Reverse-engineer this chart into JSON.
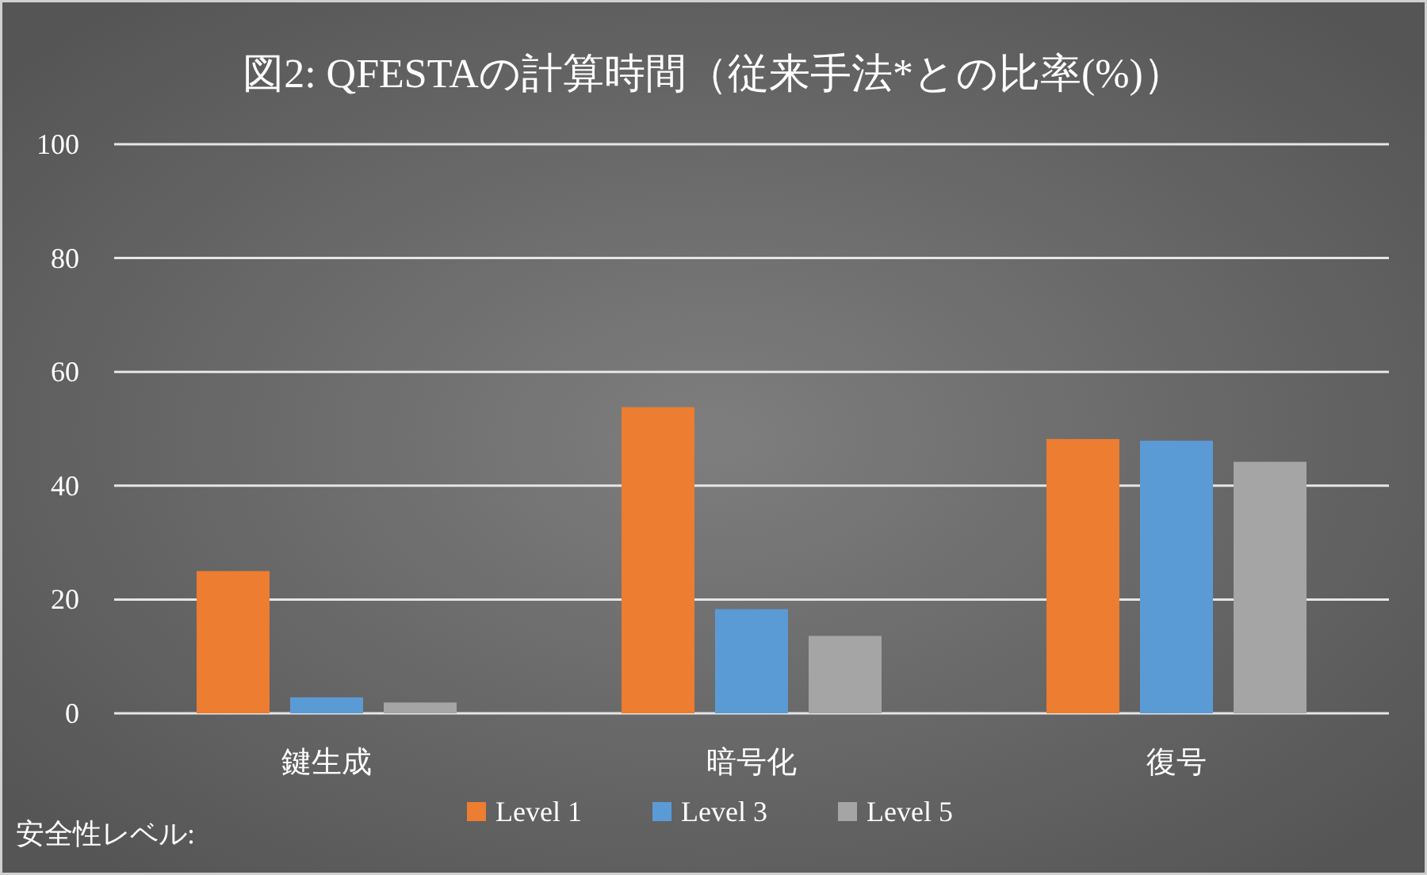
{
  "chart_data": {
    "type": "bar",
    "title": "図2: QFESTAの計算時間（従来手法*との比率(%)）",
    "categories": [
      "鍵生成",
      "暗号化",
      "復号"
    ],
    "series": [
      {
        "name": "Level 1",
        "color": "#ed7d31",
        "values": [
          25,
          53.8,
          48.2
        ]
      },
      {
        "name": "Level 3",
        "color": "#5b9bd5",
        "values": [
          2.8,
          18.3,
          47.9
        ]
      },
      {
        "name": "Level 5",
        "color": "#a5a5a5",
        "values": [
          1.9,
          13.6,
          44.2
        ]
      }
    ],
    "legend_title": "安全性レベル:",
    "ylim": [
      0,
      100
    ],
    "yticks": [
      0,
      20,
      40,
      60,
      80,
      100
    ],
    "grid": "y",
    "legend": "bottom"
  }
}
